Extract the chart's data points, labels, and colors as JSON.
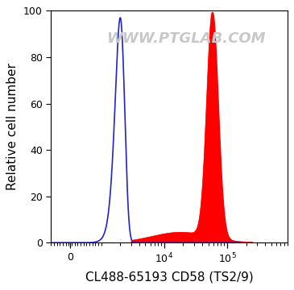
{
  "title": "",
  "xlabel": "CL488-65193 CD58 (TS2/9)",
  "ylabel": "Relative cell number",
  "ylim": [
    0,
    100
  ],
  "yticks": [
    0,
    20,
    40,
    60,
    80,
    100
  ],
  "watermark": "WWW.PTGLAB.COM",
  "blue_color": "#2222cc",
  "red_color": "#ff0000",
  "background_color": "#ffffff",
  "watermark_color": "#c8c8c8",
  "xlabel_fontsize": 11,
  "ylabel_fontsize": 11,
  "watermark_fontsize": 13,
  "tick_fontsize": 9
}
